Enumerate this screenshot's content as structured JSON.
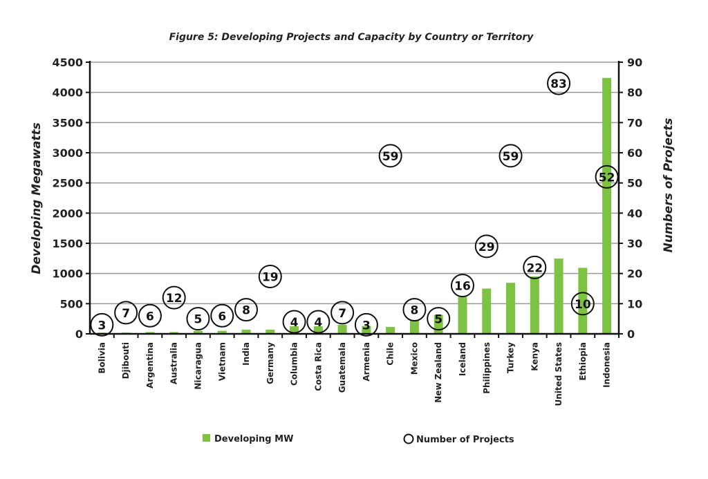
{
  "chart_data": {
    "type": "bar",
    "title": "Figure 5: Developing Projects and Capacity by Country or Territory",
    "ylabel": "Developing Megawatts",
    "y2label": "Numbers of Projects",
    "ylim": [
      0,
      4500
    ],
    "y2lim": [
      0,
      90
    ],
    "yticks": [
      0,
      500,
      1000,
      1500,
      2000,
      2500,
      3000,
      3500,
      4000,
      4500
    ],
    "y2ticks": [
      0,
      10,
      20,
      30,
      40,
      50,
      60,
      70,
      80,
      90
    ],
    "grid": true,
    "legend_position": "bottom",
    "categories": [
      "Bolivia",
      "Djibouti",
      "Argentina",
      "Australia",
      "Nicaragua",
      "Vietnam",
      "India",
      "Germany",
      "Columbia",
      "Costa Rica",
      "Guatemala",
      "Armenia",
      "Chile",
      "Mexico",
      "New Zealand",
      "Iceland",
      "Philippines",
      "Turkey",
      "Kenya",
      "United States",
      "Ethiopia",
      "Indonesia"
    ],
    "series": [
      {
        "name": "Developing MW",
        "type": "bar",
        "axis": "left",
        "color": "#7dc242",
        "values": [
          20,
          20,
          30,
          30,
          50,
          50,
          70,
          70,
          125,
          125,
          150,
          130,
          115,
          230,
          315,
          610,
          750,
          845,
          950,
          1247,
          1094,
          4240
        ]
      },
      {
        "name": "Number of Projects",
        "type": "scatter",
        "axis": "right",
        "marker": "open-circle",
        "values": [
          3,
          7,
          6,
          12,
          5,
          6,
          8,
          19,
          4,
          4,
          7,
          3,
          59,
          8,
          5,
          16,
          29,
          59,
          22,
          83,
          10,
          52
        ]
      }
    ]
  }
}
